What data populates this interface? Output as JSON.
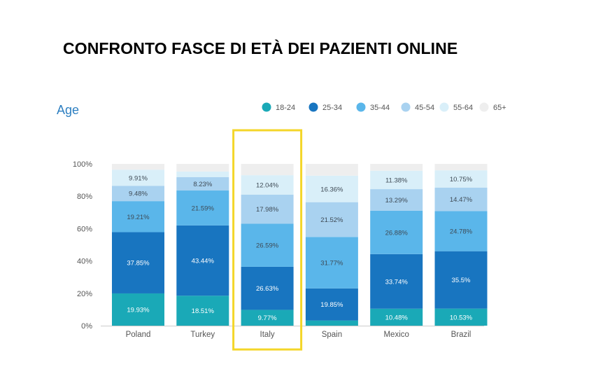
{
  "page_title": "CONFRONTO FASCE DI ETÀ DEI PAZIENTI ONLINE",
  "chart_data": {
    "type": "bar",
    "stacked": true,
    "percent_stacked": true,
    "title": "Age",
    "categories": [
      "Poland",
      "Turkey",
      "Italy",
      "Spain",
      "Mexico",
      "Brazil"
    ],
    "y_ticks": [
      "0%",
      "20%",
      "40%",
      "60%",
      "80%",
      "100%"
    ],
    "ylim": [
      0,
      100
    ],
    "grid": false,
    "legend_position": "top-right",
    "highlighted_category": "Italy",
    "highlight_color": "#f4d629",
    "series": [
      {
        "name": "18-24",
        "color": "#1aa9b7",
        "values": [
          19.93,
          18.51,
          9.77,
          3.2,
          10.48,
          10.53
        ],
        "labels": [
          "19.93%",
          "18.51%",
          "9.77%",
          "",
          "10.48%",
          "10.53%"
        ]
      },
      {
        "name": "25-34",
        "color": "#1875c0",
        "values": [
          37.85,
          43.44,
          26.63,
          19.85,
          33.74,
          35.5
        ],
        "labels": [
          "37.85%",
          "43.44%",
          "26.63%",
          "19.85%",
          "33.74%",
          "35.5%"
        ]
      },
      {
        "name": "35-44",
        "color": "#5ab6ea",
        "values": [
          19.21,
          21.59,
          26.59,
          31.77,
          26.88,
          24.78
        ],
        "labels": [
          "19.21%",
          "21.59%",
          "26.59%",
          "31.77%",
          "26.88%",
          "24.78%"
        ]
      },
      {
        "name": "45-54",
        "color": "#a9d2f0",
        "values": [
          9.48,
          8.23,
          17.98,
          21.52,
          13.29,
          14.47
        ],
        "labels": [
          "9.48%",
          "8.23%",
          "17.98%",
          "21.52%",
          "13.29%",
          "14.47%"
        ]
      },
      {
        "name": "55-64",
        "color": "#d9eff9",
        "values": [
          9.91,
          3.5,
          12.04,
          16.36,
          11.38,
          10.75
        ],
        "labels": [
          "9.91%",
          "",
          "12.04%",
          "16.36%",
          "11.38%",
          "10.75%"
        ]
      },
      {
        "name": "65+",
        "color": "#eeeeee",
        "values": [
          3.62,
          4.73,
          6.99,
          7.3,
          4.23,
          3.97
        ],
        "labels": [
          "",
          "",
          "",
          "",
          "",
          ""
        ]
      }
    ]
  }
}
